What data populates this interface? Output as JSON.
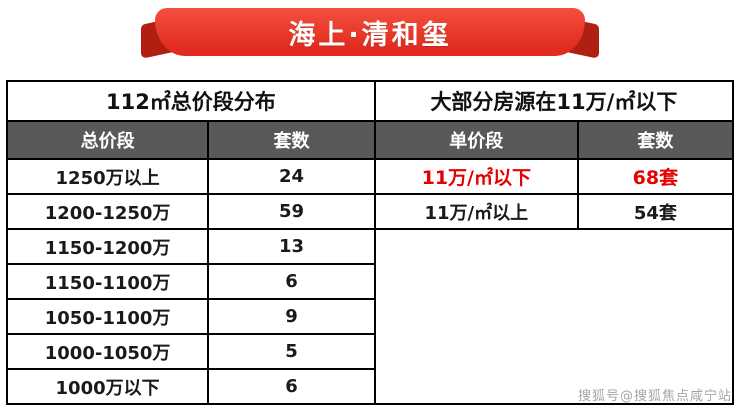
{
  "banner": {
    "title": "海上·清和玺"
  },
  "chart_data": [
    {
      "type": "table",
      "title": "112㎡总价段分布",
      "columns": [
        "总价段",
        "套数"
      ],
      "rows": [
        [
          "1250万以上",
          "24"
        ],
        [
          "1200-1250万",
          "59"
        ],
        [
          "1150-1200万",
          "13"
        ],
        [
          "1150-1100万",
          "6"
        ],
        [
          "1050-1100万",
          "9"
        ],
        [
          "1000-1050万",
          "5"
        ],
        [
          "1000万以下",
          "6"
        ]
      ]
    },
    {
      "type": "table",
      "title": "大部分房源在11万/㎡以下",
      "columns": [
        "单价段",
        "套数"
      ],
      "rows": [
        [
          "11万/㎡以下",
          "68套"
        ],
        [
          "11万/㎡以上",
          "54套"
        ]
      ],
      "highlighted_row": 0
    }
  ],
  "watermark": "搜狐号@搜狐焦点咸宁站",
  "colors": {
    "ribbon_red": "#e8382d",
    "ribbon_fold_dark_red": "#b01f12",
    "header_gray": "#58595b",
    "highlight_red": "#e60000",
    "watermark_gray": "#a6a6a6"
  }
}
